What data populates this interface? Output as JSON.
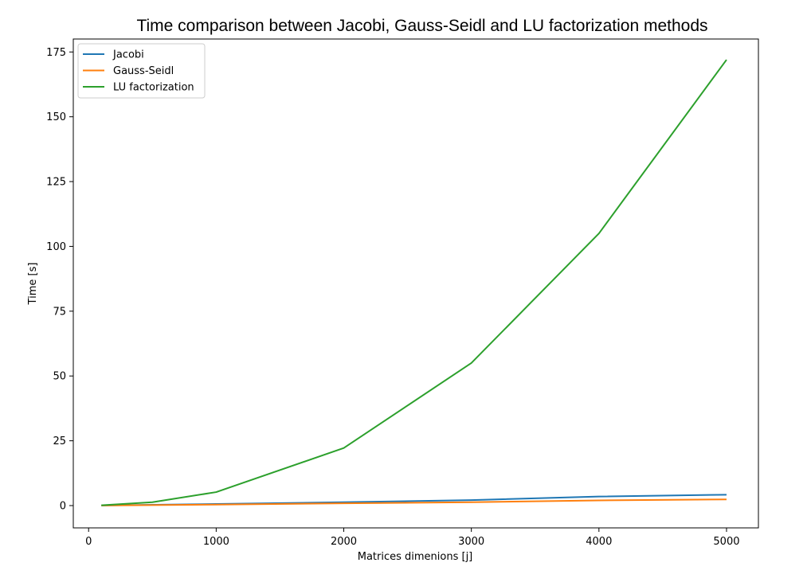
{
  "chart_data": {
    "type": "line",
    "title": "Time comparison between Jacobi, Gauss-Seidl and LU factorization methods",
    "xlabel": "Matrices dimenions [j]",
    "ylabel": "Time [s]",
    "x": [
      100,
      500,
      1000,
      2000,
      3000,
      4000,
      5000
    ],
    "xlim": [
      -120,
      5250
    ],
    "ylim": [
      -8.6,
      180
    ],
    "xticks": [
      0,
      1000,
      2000,
      3000,
      4000,
      5000
    ],
    "yticks": [
      0,
      25,
      50,
      75,
      100,
      125,
      150,
      175
    ],
    "grid": false,
    "legend": "top-left",
    "series": [
      {
        "name": "Jacobi",
        "color": "#1f77b4",
        "values": [
          0.05,
          0.3,
          0.6,
          1.3,
          2.1,
          3.5,
          4.2
        ]
      },
      {
        "name": "Gauss-Seidl",
        "color": "#ff7f0e",
        "values": [
          0.03,
          0.2,
          0.4,
          0.9,
          1.3,
          2.0,
          2.4
        ]
      },
      {
        "name": "LU factorization",
        "color": "#2ca02c",
        "values": [
          0.1,
          1.3,
          5.2,
          22.2,
          55.0,
          105.0,
          172.0
        ]
      }
    ]
  }
}
